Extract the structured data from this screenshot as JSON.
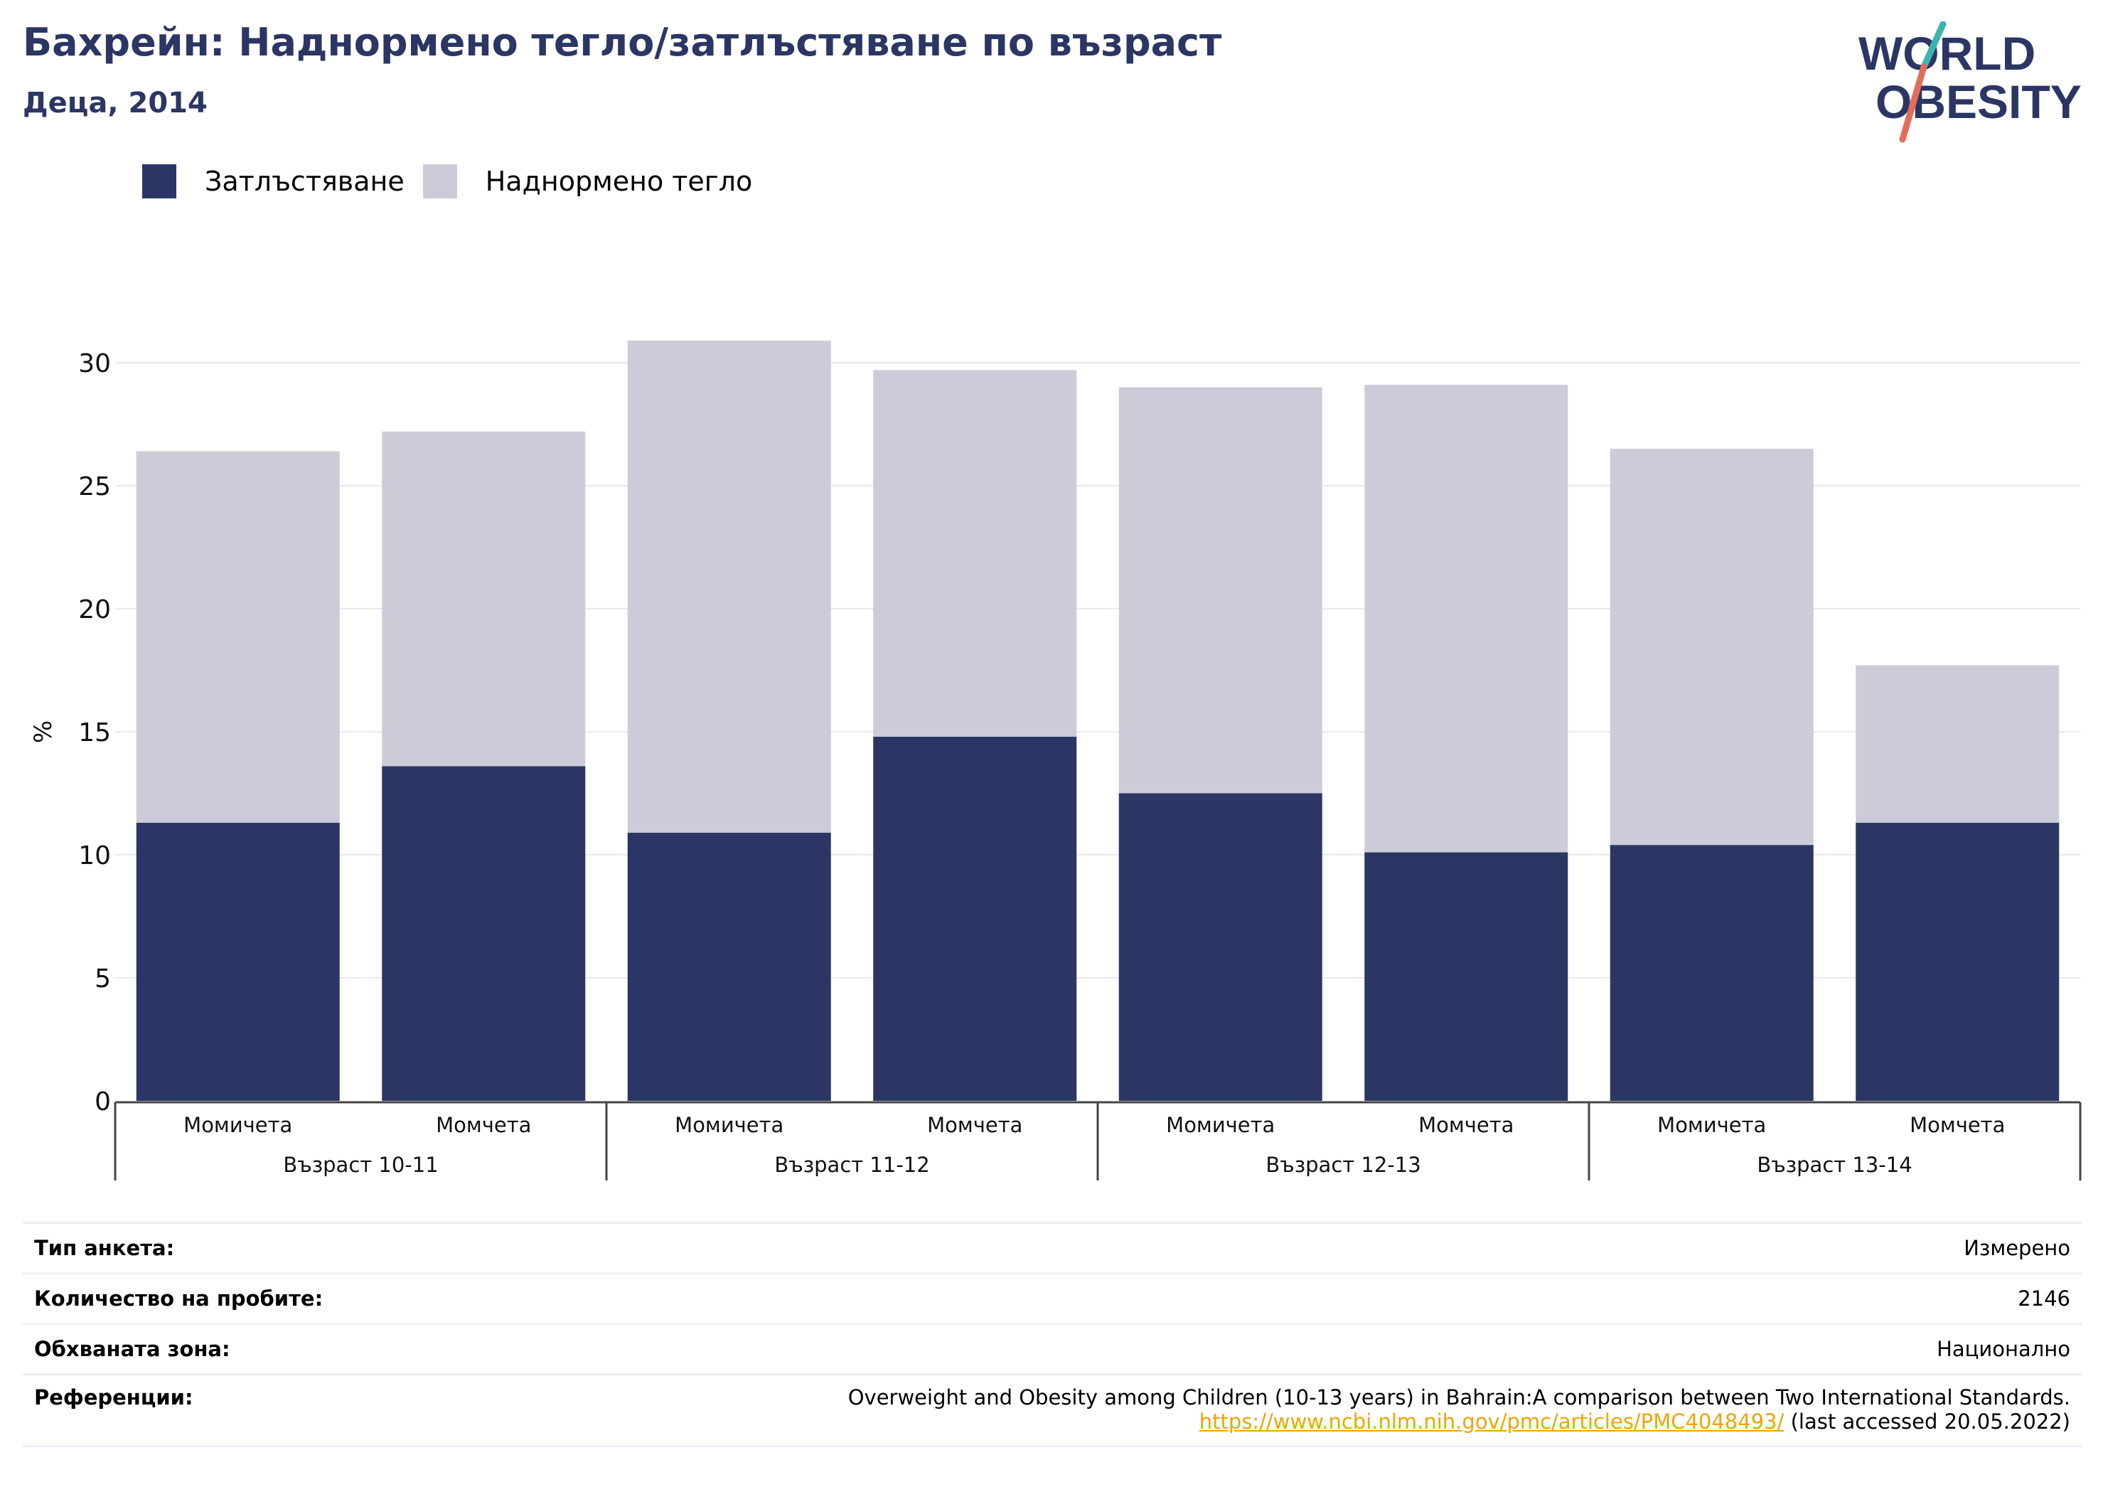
{
  "header": {
    "title": "Бахрейн: Наднормено тегло/затлъстяване по възраст",
    "subtitle": "Деца, 2014"
  },
  "logo": {
    "line1": "WORLD",
    "line2": "OBESITY",
    "text_color": "#2b3664",
    "slash_top_color": "#3ab5b0",
    "slash_bottom_color": "#e36d5a"
  },
  "legend": {
    "items": [
      {
        "label": "Затлъстяване",
        "color": "#2b3664"
      },
      {
        "label": "Наднормено тегло",
        "color": "#cbccd8"
      }
    ]
  },
  "chart_data": {
    "type": "bar",
    "stacked": true,
    "ylabel": "%",
    "ylim": [
      0,
      31
    ],
    "yticks": [
      0,
      5,
      10,
      15,
      20,
      25,
      30
    ],
    "grid": true,
    "categories": [
      "Момичета",
      "Момчета",
      "Момичета",
      "Момчета",
      "Момичета",
      "Момчета",
      "Момичета",
      "Момчета"
    ],
    "groups": [
      {
        "label": "Възраст 10-11",
        "count": 2
      },
      {
        "label": "Възраст 11-12",
        "count": 2
      },
      {
        "label": "Възраст 12-13",
        "count": 2
      },
      {
        "label": "Възраст 13-14",
        "count": 2
      }
    ],
    "series": [
      {
        "name": "Затлъстяване",
        "color": "#2b3664",
        "values": [
          11.3,
          13.6,
          10.9,
          14.8,
          12.5,
          10.1,
          10.4,
          11.3
        ]
      },
      {
        "name": "Наднормено тегло",
        "color": "#cbccd8",
        "values": [
          15.1,
          13.6,
          20.0,
          14.9,
          16.5,
          19.0,
          16.1,
          6.4
        ]
      }
    ]
  },
  "info": {
    "survey_type": {
      "label": "Тип анкета:",
      "value": "Измерено"
    },
    "sample_size": {
      "label": "Количество на пробите:",
      "value": "2146"
    },
    "area": {
      "label": "Обхваната зона:",
      "value": "Национално"
    },
    "references": {
      "label": "Референции:",
      "text": "Overweight and Obesity among Children (10-13 years) in Bahrain:A comparison between Two International Standards.",
      "link": "https://www.ncbi.nlm.nih.gov/pmc/articles/PMC4048493/",
      "suffix": " (last accessed 20.05.2022)"
    }
  }
}
